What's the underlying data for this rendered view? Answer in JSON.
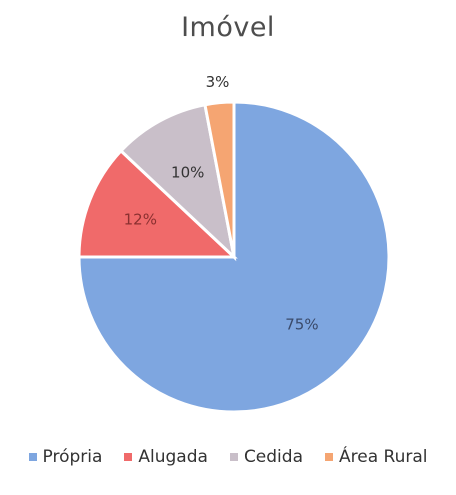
{
  "chart_data": {
    "type": "pie",
    "title": "Imóvel",
    "categories": [
      "Própria",
      "Alugada",
      "Cedida",
      "Área Rural"
    ],
    "values": [
      75,
      12,
      10,
      3
    ],
    "data_labels": [
      "75%",
      "12%",
      "10%",
      "3%"
    ],
    "colors": [
      "#7ea6e0",
      "#f06a6a",
      "#c9bfc9",
      "#f5a572"
    ],
    "start_angle": "12 o'clock",
    "direction": "clockwise",
    "legend": "bottom"
  }
}
